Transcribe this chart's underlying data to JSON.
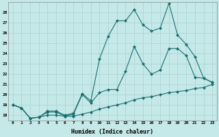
{
  "xlabel": "Humidex (Indice chaleur)",
  "bg_color": "#c5e8e8",
  "line_color": "#1a7070",
  "grid_color": "#aed4d4",
  "xlim": [
    -0.5,
    23.5
  ],
  "ylim": [
    17.5,
    29.0
  ],
  "xticks": [
    0,
    1,
    2,
    3,
    4,
    5,
    6,
    7,
    8,
    9,
    10,
    11,
    12,
    13,
    14,
    15,
    16,
    17,
    18,
    19,
    20,
    21,
    22,
    23
  ],
  "yticks": [
    18,
    19,
    20,
    21,
    22,
    23,
    24,
    25,
    26,
    27,
    28
  ],
  "line1_x": [
    0,
    1,
    2,
    3,
    4,
    5,
    6,
    7,
    8,
    9,
    10,
    11,
    12,
    13,
    14,
    15,
    16,
    17,
    18,
    19,
    20,
    21,
    22,
    23
  ],
  "line1_y": [
    19.0,
    18.7,
    17.7,
    17.8,
    18.4,
    18.4,
    18.0,
    18.2,
    20.1,
    19.4,
    23.5,
    25.7,
    27.2,
    27.2,
    28.3,
    26.8,
    26.2,
    26.5,
    28.9,
    25.8,
    24.9,
    23.7,
    21.6,
    21.2
  ],
  "line2_x": [
    0,
    1,
    2,
    3,
    4,
    5,
    6,
    7,
    8,
    9,
    10,
    11,
    12,
    13,
    14,
    15,
    16,
    17,
    18,
    19,
    20,
    21,
    22,
    23
  ],
  "line2_y": [
    19.0,
    18.7,
    17.7,
    17.8,
    18.3,
    18.3,
    17.9,
    18.1,
    20.0,
    19.2,
    20.2,
    20.5,
    20.5,
    22.3,
    24.7,
    23.0,
    22.0,
    22.4,
    24.5,
    24.5,
    23.8,
    21.7,
    21.6,
    21.2
  ],
  "line3_x": [
    0,
    1,
    2,
    3,
    4,
    5,
    6,
    7,
    8,
    9,
    10,
    11,
    12,
    13,
    14,
    15,
    16,
    17,
    18,
    19,
    20,
    21,
    22,
    23
  ],
  "line3_y": [
    19.0,
    18.7,
    17.7,
    17.8,
    18.0,
    18.0,
    17.9,
    17.9,
    18.1,
    18.3,
    18.6,
    18.8,
    19.0,
    19.2,
    19.5,
    19.7,
    19.8,
    20.0,
    20.2,
    20.3,
    20.4,
    20.6,
    20.7,
    21.0
  ]
}
